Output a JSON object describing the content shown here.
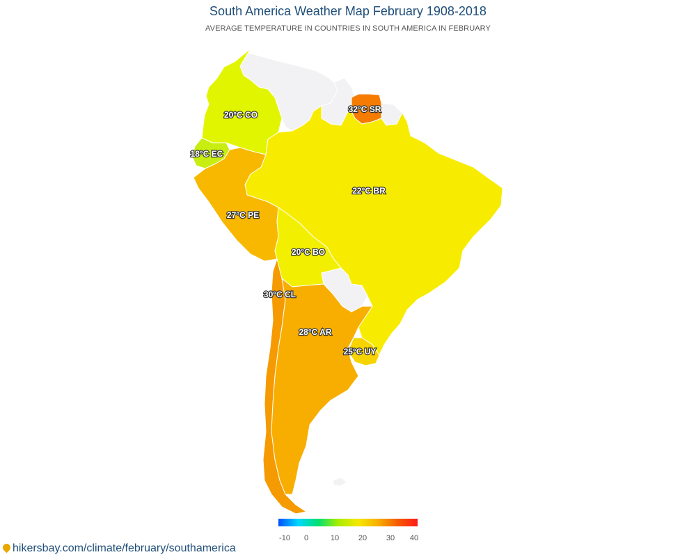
{
  "header": {
    "title": "South America Weather Map February 1908-2018",
    "subtitle": "AVERAGE TEMPERATURE IN COUNTRIES IN SOUTH AMERICA IN FEBRUARY"
  },
  "countries": [
    {
      "code": "CO",
      "label": "20°C CO",
      "temp": 20,
      "color": "#e2f500"
    },
    {
      "code": "EC",
      "label": "18°C EC",
      "temp": 18,
      "color": "#c7ee10"
    },
    {
      "code": "SR",
      "label": "32°C SR",
      "temp": 32,
      "color": "#f57c00"
    },
    {
      "code": "BR",
      "label": "22°C BR",
      "temp": 22,
      "color": "#f7ec00"
    },
    {
      "code": "PE",
      "label": "27°C PE",
      "temp": 27,
      "color": "#f8b800"
    },
    {
      "code": "BO",
      "label": "20°C BO",
      "temp": 20,
      "color": "#f2f000"
    },
    {
      "code": "CL",
      "label": "30°C CL",
      "temp": 30,
      "color": "#f59a00"
    },
    {
      "code": "AR",
      "label": "28°C AR",
      "temp": 28,
      "color": "#f8ae00"
    },
    {
      "code": "UY",
      "label": "25°C UY",
      "temp": 25,
      "color": "#f7d400"
    }
  ],
  "no_data_color": "#f2f2f4",
  "legend": {
    "ticks": [
      "-10",
      "0",
      "10",
      "20",
      "30",
      "40"
    ],
    "colors": [
      "#0050ff",
      "#00d8ff",
      "#00e070",
      "#a8ee00",
      "#f4e800",
      "#f8b000",
      "#f55a00",
      "#ff1a1a"
    ]
  },
  "footer": {
    "link_text": "hikersbay.com/climate/february/southamerica"
  }
}
